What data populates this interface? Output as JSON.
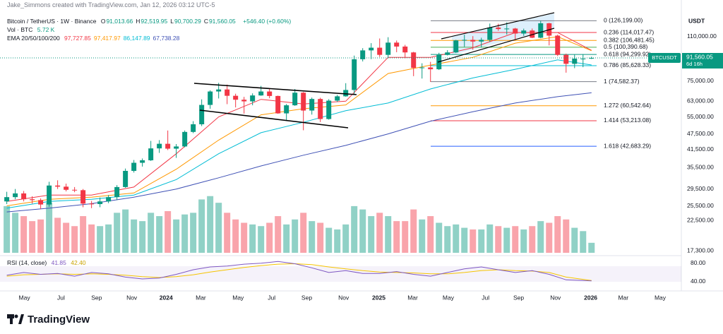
{
  "header": {
    "credit": "Jake_Simmons created with TradingView.com, Jan 12, 2026 03:12 UTC-5",
    "brand": "TradingView"
  },
  "legend": {
    "symbol": "Bitcoin / TetherUS · 1W · Binance",
    "ohlc": [
      {
        "key": "O",
        "value": "91,013.66"
      },
      {
        "key": "H",
        "value": "92,519.95"
      },
      {
        "key": "L",
        "value": "90,700.29"
      },
      {
        "key": "C",
        "value": "91,560.05"
      }
    ],
    "change": "+546.40 (+0.60%)",
    "volume_label": "Vol · BTC",
    "volume_value": "5.72 K",
    "ema_label": "EMA 20/50/100/200",
    "rsi_label": "RSI (14, close)"
  },
  "chart_data": {
    "type": "candlestick",
    "price_axis_unit": "USDT",
    "colors": {
      "up": "#089981",
      "down": "#f23645"
    },
    "candles": [
      [
        26500,
        28800,
        25900,
        27500
      ],
      [
        27500,
        29500,
        27000,
        28400
      ],
      [
        28400,
        29000,
        26500,
        27000
      ],
      [
        27000,
        27700,
        26000,
        26800
      ],
      [
        26800,
        27200,
        24800,
        25800
      ],
      [
        25800,
        31400,
        25300,
        30400
      ],
      [
        30400,
        31800,
        29500,
        30100
      ],
      [
        30100,
        30900,
        28900,
        29300
      ],
      [
        29300,
        30000,
        28700,
        29200
      ],
      [
        29200,
        29500,
        25200,
        26000
      ],
      [
        26000,
        26600,
        25000,
        25900
      ],
      [
        25900,
        27400,
        25200,
        26500
      ],
      [
        26500,
        28000,
        26100,
        27500
      ],
      [
        27500,
        30500,
        26800,
        30000
      ],
      [
        30000,
        35200,
        29800,
        34500
      ],
      [
        34500,
        37900,
        34000,
        37000
      ],
      [
        37000,
        38400,
        35800,
        37800
      ],
      [
        37800,
        44700,
        37600,
        41900
      ],
      [
        41900,
        45000,
        40300,
        43600
      ],
      [
        43600,
        48900,
        41300,
        41800
      ],
      [
        41800,
        43500,
        38600,
        42600
      ],
      [
        42600,
        48900,
        42300,
        48300
      ],
      [
        48300,
        53000,
        47800,
        51600
      ],
      [
        51600,
        64000,
        50800,
        61000
      ],
      [
        61000,
        69200,
        59000,
        68500
      ],
      [
        68500,
        73800,
        64500,
        69700
      ],
      [
        69700,
        72700,
        61400,
        66000
      ],
      [
        66000,
        67200,
        59700,
        63800
      ],
      [
        63800,
        65400,
        56600,
        62900
      ],
      [
        62900,
        67400,
        60800,
        66200
      ],
      [
        66200,
        71900,
        66000,
        68500
      ],
      [
        68500,
        70000,
        64600,
        65900
      ],
      [
        65900,
        66100,
        56500,
        56700
      ],
      [
        56700,
        61500,
        53500,
        60800
      ],
      [
        60800,
        70000,
        60500,
        67800
      ],
      [
        67800,
        68200,
        49000,
        58100
      ],
      [
        58100,
        65000,
        56100,
        64200
      ],
      [
        64200,
        64900,
        52600,
        54000
      ],
      [
        54000,
        64100,
        53700,
        63300
      ],
      [
        63300,
        66500,
        62600,
        65700
      ],
      [
        65700,
        73600,
        65500,
        69400
      ],
      [
        69400,
        93400,
        67000,
        90500
      ],
      [
        90500,
        99600,
        88800,
        97700
      ],
      [
        97700,
        104000,
        90600,
        100000
      ],
      [
        100000,
        108300,
        92300,
        94000
      ],
      [
        94000,
        109500,
        91200,
        104500
      ],
      [
        104500,
        106400,
        96200,
        101000
      ],
      [
        101000,
        102500,
        91200,
        96000
      ],
      [
        96000,
        96500,
        78200,
        84000
      ],
      [
        84000,
        87400,
        76600,
        84300
      ],
      [
        84300,
        88500,
        74400,
        83000
      ],
      [
        83000,
        95700,
        82500,
        94000
      ],
      [
        94000,
        97900,
        93500,
        96000
      ],
      [
        96000,
        107000,
        95500,
        106500
      ],
      [
        106500,
        111900,
        100700,
        107000
      ],
      [
        107000,
        110500,
        98200,
        105500
      ],
      [
        105500,
        109000,
        100000,
        107000
      ],
      [
        107000,
        123200,
        105200,
        119000
      ],
      [
        119000,
        123000,
        115700,
        117500
      ],
      [
        117500,
        124500,
        112000,
        118000
      ],
      [
        118000,
        118700,
        107300,
        113000
      ],
      [
        113000,
        117900,
        110700,
        116000
      ],
      [
        116000,
        118000,
        108600,
        109000
      ],
      [
        109000,
        126199,
        108500,
        123500
      ],
      [
        123500,
        124000,
        102000,
        111000
      ],
      [
        111000,
        112000,
        93000,
        94000
      ],
      [
        94000,
        95000,
        80600,
        87000
      ],
      [
        87000,
        94100,
        83800,
        91000
      ],
      [
        91000,
        94600,
        84500,
        91013.66
      ],
      [
        91013.66,
        92519.95,
        90700.29,
        91560.05
      ]
    ],
    "volume": [
      140,
      120,
      110,
      95,
      100,
      150,
      105,
      90,
      80,
      110,
      85,
      80,
      85,
      120,
      130,
      100,
      95,
      120,
      110,
      125,
      100,
      115,
      120,
      160,
      170,
      150,
      120,
      100,
      90,
      85,
      80,
      90,
      110,
      85,
      100,
      120,
      95,
      90,
      75,
      70,
      85,
      140,
      130,
      110,
      120,
      110,
      95,
      95,
      130,
      100,
      110,
      90,
      80,
      85,
      75,
      70,
      70,
      85,
      80,
      75,
      80,
      70,
      80,
      95,
      90,
      110,
      100,
      75,
      65,
      30
    ],
    "volume_lim": [
      0,
      180
    ],
    "xlim": [
      -0.8,
      79.6
    ],
    "xticks": [
      {
        "value": 2.08,
        "label": "May"
      },
      {
        "value": 6.4,
        "label": "Jul"
      },
      {
        "value": 10.6,
        "label": "Sep"
      },
      {
        "value": 14.75,
        "label": "Nov"
      },
      {
        "value": 18.8,
        "label": "2024"
      },
      {
        "value": 22.9,
        "label": "Mar"
      },
      {
        "value": 27.3,
        "label": "May"
      },
      {
        "value": 31.25,
        "label": "Jul"
      },
      {
        "value": 35.4,
        "label": "Sep"
      },
      {
        "value": 39.75,
        "label": "Nov"
      },
      {
        "value": 43.9,
        "label": "2025"
      },
      {
        "value": 47.9,
        "label": "Mar"
      },
      {
        "value": 52.1,
        "label": "May"
      },
      {
        "value": 56.5,
        "label": "Jul"
      },
      {
        "value": 60.4,
        "label": "Sep"
      },
      {
        "value": 64.75,
        "label": "Nov"
      },
      {
        "value": 68.9,
        "label": "2026"
      },
      {
        "value": 72.75,
        "label": "Mar"
      },
      {
        "value": 77.1,
        "label": "May"
      }
    ],
    "log_scale": true,
    "grid": false,
    "ylim": [
      17000,
      151000
    ],
    "yticks": [
      {
        "value": 110000,
        "label": "110,000.00"
      },
      {
        "value": 75000,
        "label": "75,000.00"
      },
      {
        "value": 63000,
        "label": "63,000.00"
      },
      {
        "value": 55000,
        "label": "55,000.00"
      },
      {
        "value": 47500,
        "label": "47,500.00"
      },
      {
        "value": 41500,
        "label": "41,500.00"
      },
      {
        "value": 35500,
        "label": "35,500.00"
      },
      {
        "value": 29500,
        "label": "29,500.00"
      },
      {
        "value": 25500,
        "label": "25,500.00"
      },
      {
        "value": 22500,
        "label": "22,500.00"
      },
      {
        "value": 17300,
        "label": "17,300.00"
      }
    ],
    "ema": {
      "x": [
        0,
        5,
        10,
        15,
        20,
        25,
        30,
        35,
        40,
        45,
        50,
        55,
        60,
        65,
        69
      ],
      "series": [
        {
          "name": "20",
          "color": "#f23645",
          "values": [
            26500,
            28000,
            28000,
            30000,
            40000,
            55000,
            64000,
            61500,
            63000,
            92000,
            92000,
            100000,
            114000,
            114000,
            97727.85
          ],
          "last_label": "97,727.85"
        },
        {
          "name": "50",
          "color": "#ff9800",
          "values": [
            25500,
            27000,
            27500,
            28500,
            35000,
            45000,
            56000,
            59000,
            61000,
            80000,
            86000,
            92000,
            104000,
            110000,
            97417.97
          ],
          "last_label": "97,417.97"
        },
        {
          "name": "100",
          "color": "#00bcd4",
          "values": [
            25000,
            26500,
            27000,
            28000,
            32000,
            40000,
            48000,
            52500,
            58000,
            62000,
            70000,
            77000,
            83000,
            90000,
            86147.89
          ],
          "last_label": "86,147.89"
        },
        {
          "name": "200",
          "color": "#3f51b5",
          "values": [
            24200,
            25000,
            26000,
            27500,
            29500,
            32500,
            36000,
            39500,
            43000,
            47500,
            53000,
            57500,
            62000,
            65500,
            67738.28
          ],
          "last_label": "67,738.28"
        }
      ]
    },
    "last_price": {
      "symbol": "BTCUSDT",
      "value": 91560.05,
      "label": "91,560.05",
      "countdown": "6d 16h",
      "color": "#089981"
    },
    "fib": [
      {
        "label": "0 (126,199.00)",
        "value": 126199,
        "color": "#787b86"
      },
      {
        "label": "0.236 (114,017.47)",
        "value": 114017.47,
        "color": "#f23645"
      },
      {
        "label": "0.382 (106,481.45)",
        "value": 106481.45,
        "color": "#ff9800"
      },
      {
        "label": "0.5 (100,390.68)",
        "value": 100390.68,
        "color": "#4caf50"
      },
      {
        "label": "0.618 (94,299.92)",
        "value": 94299.92,
        "color": "#089981"
      },
      {
        "label": "0.786 (85,628.33)",
        "value": 85628.33,
        "color": "#00bcd4"
      },
      {
        "label": "1 (74,582.37)",
        "value": 74582.37,
        "color": "#787b86"
      },
      {
        "label": "1.272 (60,542.64)",
        "value": 60542.64,
        "color": "#ff9800"
      },
      {
        "label": "1.414 (53,213.08)",
        "value": 53213.08,
        "color": "#f23645"
      },
      {
        "label": "1.618 (42,683.29)",
        "value": 42683.29,
        "color": "#2962ff"
      }
    ],
    "rsi": {
      "x": [
        0,
        2,
        4,
        6,
        8,
        10,
        12,
        14,
        16,
        18,
        20,
        22,
        24,
        26,
        28,
        30,
        32,
        34,
        36,
        38,
        40,
        42,
        44,
        46,
        48,
        50,
        52,
        54,
        56,
        58,
        60,
        62,
        64,
        66,
        69
      ],
      "values": [
        54,
        60,
        56,
        58,
        52,
        60,
        57,
        50,
        46,
        48,
        56,
        66,
        72,
        74,
        78,
        80,
        84,
        79,
        70,
        60,
        64,
        58,
        58,
        62,
        56,
        52,
        60,
        68,
        72,
        66,
        60,
        64,
        56,
        44,
        41.85
      ],
      "ma": [
        52,
        55,
        56,
        57,
        56,
        57,
        56,
        54,
        51,
        49,
        51,
        55,
        61,
        66,
        71,
        75,
        78,
        79,
        77,
        72,
        68,
        64,
        61,
        60,
        59,
        57,
        57,
        60,
        64,
        66,
        64,
        63,
        60,
        50,
        42.4
      ],
      "value_label": "41.85",
      "ma_label": "42.40",
      "color": "#7e57c2",
      "ma_color": "#f5c400",
      "ylim": [
        23,
        92
      ],
      "yticks": [
        {
          "value": 80,
          "label": "80.00"
        },
        {
          "value": 40,
          "label": "40.00"
        }
      ]
    }
  }
}
